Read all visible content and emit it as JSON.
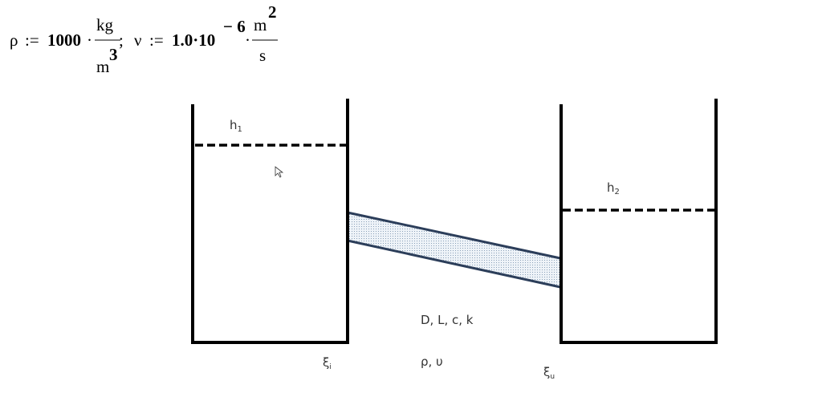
{
  "formula": {
    "rho": "ρ",
    "assign1": ":=",
    "rho_value": "1000",
    "dot1": "·",
    "kg": "kg",
    "m": "m",
    "m_exp": "3",
    "sep": ";",
    "nu": "ν",
    "assign2": ":=",
    "nu_mantissa": "1.0·10",
    "nu_exp": "− 6",
    "dot2": "·",
    "m2": "m",
    "m2_exp": "2",
    "s": "s"
  },
  "diagram": {
    "h1": "h",
    "h1_sub": "1",
    "h2": "h",
    "h2_sub": "2",
    "pipe_params": "D, L, c, k",
    "fluid_params": "ρ, υ",
    "xi_in": "ξ",
    "xi_in_sub": "i",
    "xi_out": "ξ",
    "xi_out_sub": "u"
  }
}
